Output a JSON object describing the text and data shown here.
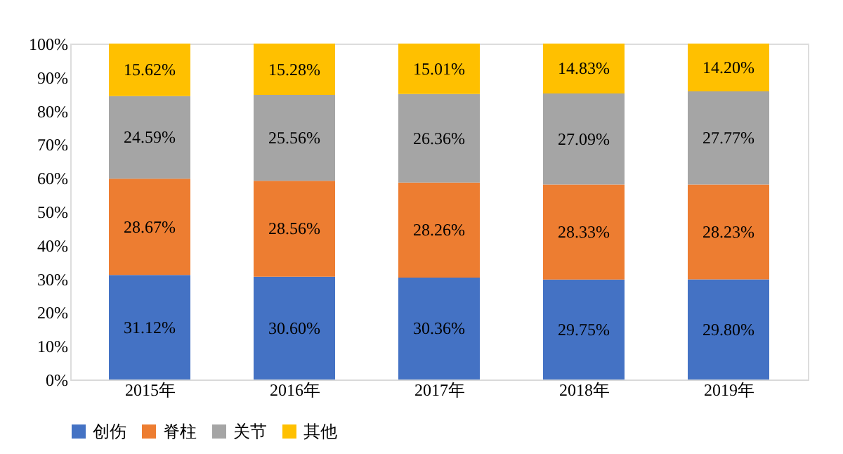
{
  "chart_data": {
    "type": "bar",
    "stacked": true,
    "categories": [
      "2015年",
      "2016年",
      "2017年",
      "2018年",
      "2019年"
    ],
    "series": [
      {
        "name": "创伤",
        "color": "#4472c4",
        "values": [
          31.12,
          30.6,
          30.36,
          29.75,
          29.8
        ],
        "value_labels": [
          "31.12%",
          "30.60%",
          "30.36%",
          "29.75%",
          "29.80%"
        ]
      },
      {
        "name": "脊柱",
        "color": "#ed7d31",
        "values": [
          28.67,
          28.56,
          28.26,
          28.33,
          28.23
        ],
        "value_labels": [
          "28.67%",
          "28.56%",
          "28.26%",
          "28.33%",
          "28.23%"
        ]
      },
      {
        "name": "关节",
        "color": "#a5a5a5",
        "values": [
          24.59,
          25.56,
          26.36,
          27.09,
          27.77
        ],
        "value_labels": [
          "24.59%",
          "25.56%",
          "26.36%",
          "27.09%",
          "27.77%"
        ]
      },
      {
        "name": "其他",
        "color": "#ffc000",
        "values": [
          15.62,
          15.28,
          15.01,
          14.83,
          14.2
        ],
        "value_labels": [
          "15.62%",
          "15.28%",
          "15.01%",
          "14.83%",
          "14.20%"
        ]
      }
    ],
    "ylim": [
      0,
      100
    ],
    "yticks": [
      {
        "value": 0,
        "label": "0%"
      },
      {
        "value": 10,
        "label": "10%"
      },
      {
        "value": 20,
        "label": "20%"
      },
      {
        "value": 30,
        "label": "30%"
      },
      {
        "value": 40,
        "label": "40%"
      },
      {
        "value": 50,
        "label": "50%"
      },
      {
        "value": 60,
        "label": "60%"
      },
      {
        "value": 70,
        "label": "70%"
      },
      {
        "value": 80,
        "label": "80%"
      },
      {
        "value": 90,
        "label": "90%"
      },
      {
        "value": 100,
        "label": "100%"
      }
    ],
    "grid": false,
    "legend": "bottom"
  }
}
